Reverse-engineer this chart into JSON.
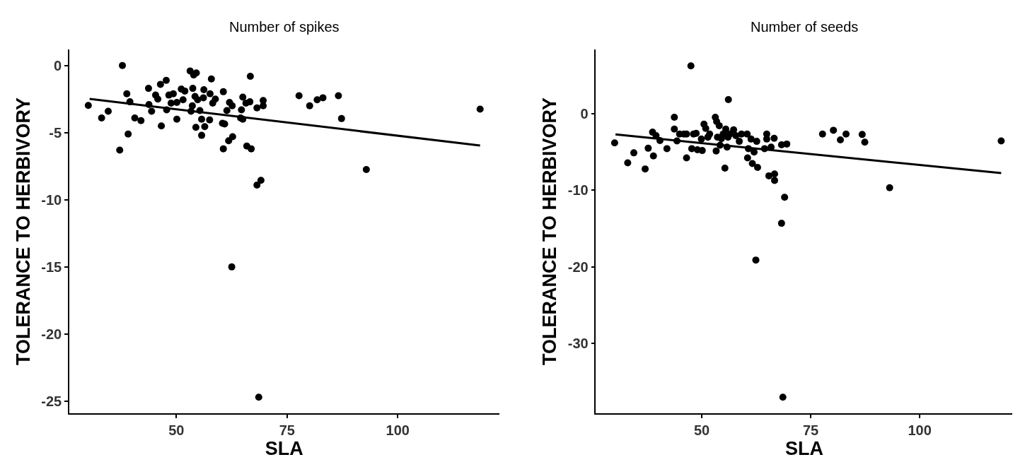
{
  "chart_data": [
    {
      "type": "scatter",
      "title": "Number of spikes",
      "xlabel": "SLA",
      "ylabel": "TOLERANCE TO HERBIVORY",
      "xlim": [
        25.8,
        122.9
      ],
      "ylim": [
        -25.9,
        1.2
      ],
      "xticks": [
        50,
        75,
        100
      ],
      "yticks": [
        0,
        -5,
        -10,
        -15,
        -20,
        -25
      ],
      "marker": "circle",
      "series": [
        {
          "color": "#000000",
          "x": [
            30.1,
            33.1,
            34.6,
            37.2,
            37.8,
            38.8,
            39.1,
            39.5,
            40.6,
            42.0,
            43.7,
            43.8,
            44.4,
            45.3,
            45.8,
            46.4,
            46.6,
            47.7,
            47.8,
            48.3,
            48.8,
            49.3,
            50.1,
            50.1,
            51.1,
            51.5,
            51.9,
            53.1,
            53.3,
            53.6,
            53.7,
            53.9,
            54.2,
            54.4,
            54.5,
            54.8,
            55.3,
            55.7,
            55.7,
            56.1,
            56.2,
            56.4,
            57.5,
            57.6,
            57.9,
            58.2,
            58.8,
            60.4,
            60.6,
            60.6,
            60.9,
            61.4,
            61.8,
            62.0,
            62.5,
            62.6,
            62.7,
            64.5,
            64.7,
            65.0,
            65.0,
            65.7,
            65.9,
            66.6,
            66.7,
            66.9,
            68.2,
            68.2,
            68.6,
            69.1,
            69.6,
            69.6,
            77.7,
            80.1,
            81.8,
            83.1,
            86.6,
            87.3,
            92.9,
            118.6
          ],
          "values": [
            -2.97,
            -3.9,
            -3.4,
            -6.3,
            0,
            -2.1,
            -5.1,
            -2.7,
            -3.9,
            -4.1,
            -1.7,
            -2.9,
            -3.4,
            -2.2,
            -2.5,
            -1.4,
            -4.5,
            -1.1,
            -3.3,
            -2.2,
            -2.8,
            -2.1,
            -4.0,
            -2.75,
            -1.75,
            -2.55,
            -1.9,
            -0.4,
            -3.4,
            -3.0,
            -1.7,
            -0.7,
            -2.3,
            -4.6,
            -0.55,
            -2.55,
            -3.35,
            -4.0,
            -5.2,
            -2.4,
            -1.8,
            -4.55,
            -4.05,
            -2.1,
            -1.0,
            -2.8,
            -2.5,
            -4.3,
            -1.95,
            -6.2,
            -4.35,
            -3.35,
            -5.6,
            -2.75,
            -15.0,
            -3.0,
            -5.3,
            -3.9,
            -3.3,
            -2.35,
            -4.0,
            -2.8,
            -6.0,
            -2.7,
            -0.8,
            -6.2,
            -8.9,
            -3.15,
            -24.7,
            -8.55,
            -2.6,
            -3.0,
            -2.25,
            -3.0,
            -2.55,
            -2.4,
            -2.25,
            -3.95,
            -7.75,
            -3.25
          ]
        },
        {
          "type": "line",
          "color": "#000000",
          "marker": "none",
          "x": [
            30.4,
            118.6
          ],
          "values": [
            -2.48,
            -5.96
          ]
        }
      ]
    },
    {
      "type": "scatter",
      "title": "Number of seeds",
      "xlabel": "SLA",
      "ylabel": "TOLERANCE TO HERBIVORY",
      "xlim": [
        25.7,
        121.3
      ],
      "ylim": [
        -39.1,
        8.4
      ],
      "xticks": [
        50,
        75,
        100
      ],
      "yticks": [
        0,
        -10,
        -20,
        -30
      ],
      "marker": "circle",
      "series": [
        {
          "color": "#000000",
          "x": [
            30.0,
            33.0,
            34.4,
            37.0,
            37.7,
            38.7,
            38.9,
            39.5,
            40.4,
            42.0,
            43.7,
            43.7,
            44.3,
            44.9,
            45.9,
            46.5,
            46.5,
            47.5,
            47.7,
            48.1,
            48.7,
            49.0,
            49.9,
            50.1,
            50.5,
            50.9,
            51.4,
            51.8,
            53.1,
            53.3,
            53.4,
            53.6,
            54.0,
            54.2,
            54.5,
            54.9,
            55.3,
            55.5,
            55.8,
            56.0,
            56.1,
            56.4,
            57.3,
            57.8,
            58.6,
            59.1,
            60.4,
            60.5,
            60.7,
            61.3,
            61.6,
            62.0,
            62.4,
            62.6,
            62.8,
            64.4,
            64.9,
            64.9,
            65.4,
            65.9,
            66.6,
            66.7,
            66.7,
            68.3,
            68.3,
            68.6,
            69.0,
            69.5,
            77.7,
            80.2,
            81.8,
            83.1,
            86.8,
            87.4,
            93.1,
            118.7
          ],
          "values": [
            -3.8,
            -6.4,
            -5.1,
            -7.2,
            -4.5,
            -2.4,
            -5.5,
            -2.85,
            -3.5,
            -4.55,
            -0.45,
            -2.0,
            -3.55,
            -2.65,
            -2.65,
            -5.75,
            -2.65,
            6.25,
            -4.55,
            -2.65,
            -2.55,
            -4.7,
            -3.3,
            -4.8,
            -1.35,
            -1.9,
            -3.05,
            -2.65,
            -0.45,
            -4.85,
            -1.0,
            -3.05,
            -1.55,
            -4.1,
            -3.25,
            -2.65,
            -7.1,
            -2.0,
            -4.35,
            -3.05,
            1.85,
            -2.65,
            -2.1,
            -2.85,
            -3.6,
            -2.65,
            -2.65,
            -5.75,
            -4.55,
            -3.3,
            -6.5,
            -5.0,
            -19.1,
            -3.6,
            -7.0,
            -4.55,
            -2.65,
            -3.3,
            -8.1,
            -4.35,
            -3.2,
            -7.85,
            -8.7,
            -14.3,
            -4.05,
            -37.0,
            -10.9,
            -3.95,
            -2.65,
            -2.15,
            -3.4,
            -2.65,
            -2.7,
            -3.7,
            -9.65,
            -3.55
          ]
        },
        {
          "type": "line",
          "color": "#000000",
          "marker": "none",
          "x": [
            30.2,
            118.7
          ],
          "values": [
            -2.7,
            -7.75
          ]
        }
      ]
    }
  ]
}
